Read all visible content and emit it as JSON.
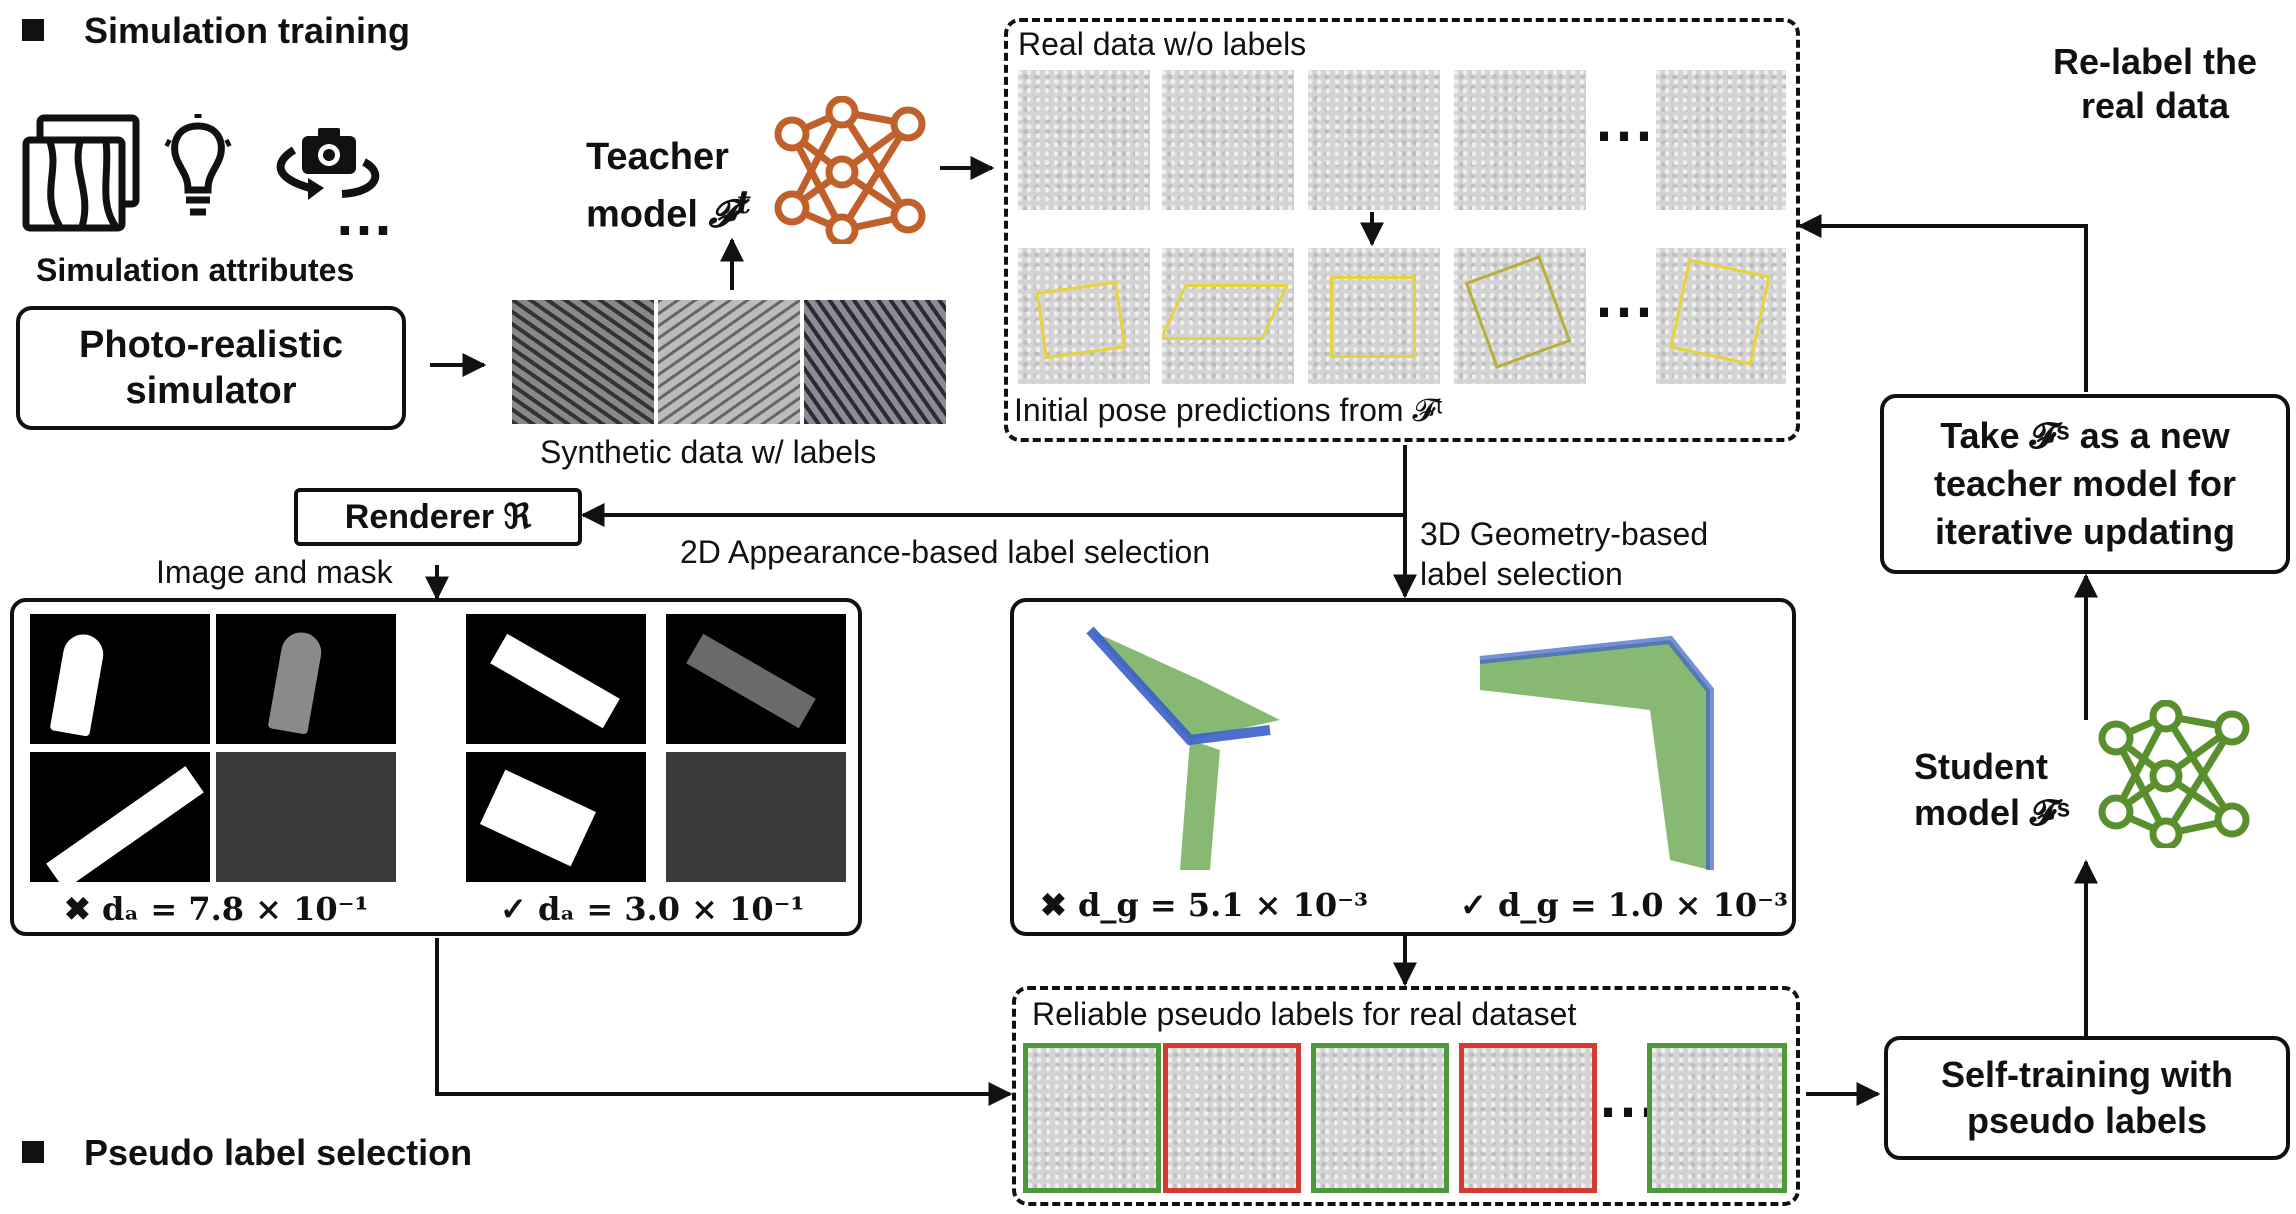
{
  "sections": {
    "simulation_training": "Simulation training",
    "pseudo_label_selection": "Pseudo label selection"
  },
  "simulation": {
    "attributes_caption": "Simulation attributes",
    "ellipsis": "…",
    "simulator_label_line1": "Photo-realistic",
    "simulator_label_line2": "simulator",
    "synthetic_caption": "Synthetic data w/ labels"
  },
  "teacher": {
    "label_line1": "Teacher",
    "label_line2": "model",
    "symbol": "𝓕",
    "superscript": "t",
    "color": "#c0602a"
  },
  "real_data": {
    "top_caption": "Real data w/o labels",
    "bottom_caption": "Initial pose predictions from 𝓕ᵗ",
    "ellipsis": "⋯"
  },
  "renderer": {
    "label": "Renderer ℜ",
    "image_mask_caption": "Image and mask",
    "appearance_selection": "2D Appearance-based label selection"
  },
  "geometry": {
    "selection_line1": "3D Geometry-based",
    "selection_line2": "label selection"
  },
  "appearance_scores": {
    "bad": "✖ dₐ = 7.8 × 10⁻¹",
    "good": "✓ dₐ = 3.0 × 10⁻¹"
  },
  "geometry_scores": {
    "bad": "✖ d_g = 5.1 × 10⁻³",
    "good": "✓ d_g = 1.0 × 10⁻³"
  },
  "reliable": {
    "caption": "Reliable pseudo labels for real dataset",
    "ellipsis": "⋯",
    "frame_colors": [
      "green",
      "red",
      "green",
      "red",
      "green"
    ]
  },
  "right_column": {
    "relabel_line1": "Re-label the",
    "relabel_line2": "real data",
    "take_line1": "Take 𝓕ˢ as a new",
    "take_line2": "teacher model for",
    "take_line3": "iterative updating",
    "student_line1": "Student",
    "student_line2": "model 𝓕ˢ",
    "self_training_line1": "Self-training with",
    "self_training_line2": "pseudo labels",
    "student_color": "#5a8f2e"
  }
}
